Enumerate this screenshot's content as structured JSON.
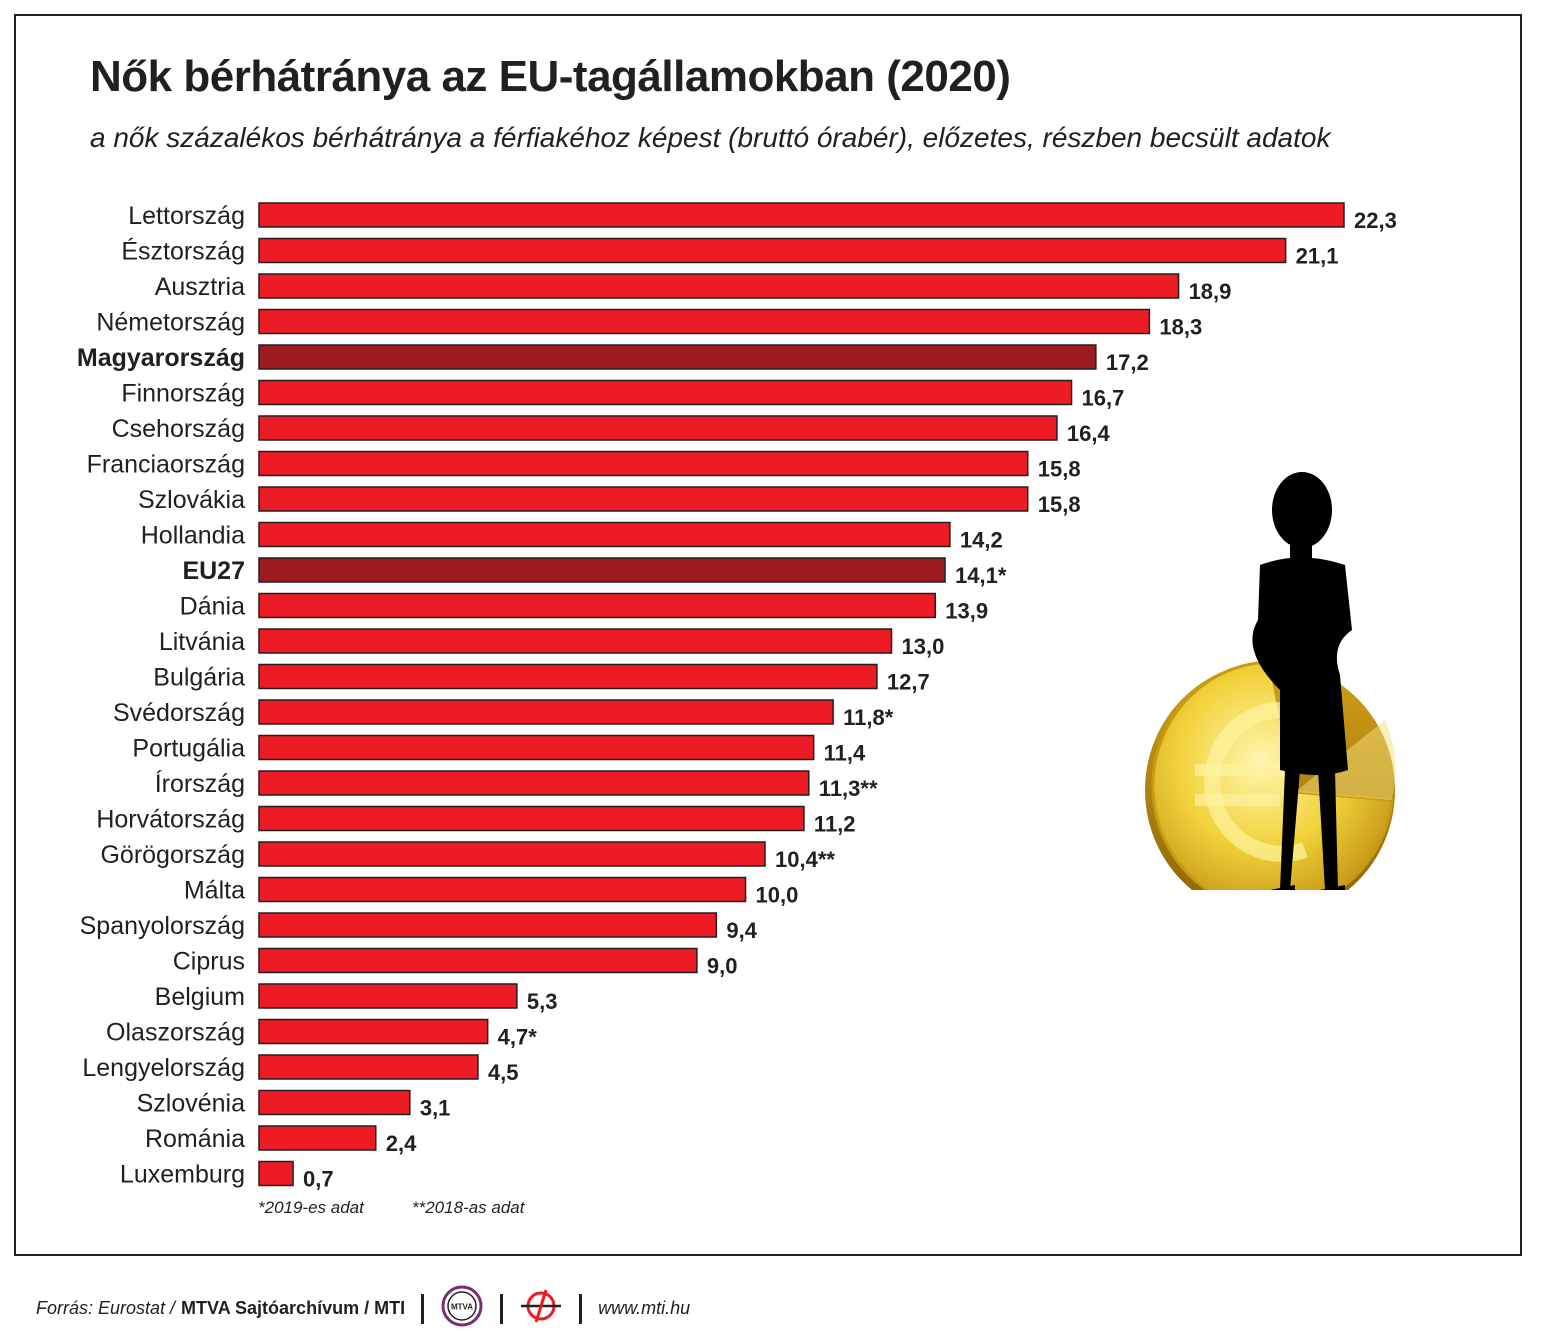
{
  "title": "Nők bérhátránya az EU-tagállamokban (2020)",
  "subtitle": "a nők százalékos bérhátránya a férfiakéhoz képest (bruttó órabér), előzetes, részben becsült adatok",
  "chart_data": {
    "type": "bar",
    "orientation": "horizontal",
    "categories": [
      "Lettország",
      "Észtország",
      "Ausztria",
      "Németország",
      "Magyarország",
      "Finnország",
      "Csehország",
      "Franciaország",
      "Szlovákia",
      "Hollandia",
      "EU27",
      "Dánia",
      "Litvánia",
      "Bulgária",
      "Svédország",
      "Portugália",
      "Írország",
      "Horvátország",
      "Görögország",
      "Málta",
      "Spanyolország",
      "Ciprus",
      "Belgium",
      "Olaszország",
      "Lengyelország",
      "Szlovénia",
      "Románia",
      "Luxemburg"
    ],
    "values": [
      22.3,
      21.1,
      18.9,
      18.3,
      17.2,
      16.7,
      16.4,
      15.8,
      15.8,
      14.2,
      14.1,
      13.9,
      13.0,
      12.7,
      11.8,
      11.4,
      11.3,
      11.2,
      10.4,
      10.0,
      9.4,
      9.0,
      5.3,
      4.7,
      4.5,
      3.1,
      2.4,
      0.7
    ],
    "value_labels": [
      "22,3",
      "21,1",
      "18,9",
      "18,3",
      "17,2",
      "16,7",
      "16,4",
      "15,8",
      "15,8",
      "14,2",
      "14,1*",
      "13,9",
      "13,0",
      "12,7",
      "11,8*",
      "11,4",
      "11,3**",
      "11,2",
      "10,4**",
      "10,0",
      "9,4",
      "9,0",
      "5,3",
      "4,7*",
      "4,5",
      "3,1",
      "2,4",
      "0,7"
    ],
    "highlighted": [
      "Magyarország",
      "EU27"
    ],
    "colors": {
      "bar": "#ed1c24",
      "highlight": "#9b1b1f",
      "outline": "#231f20"
    }
  },
  "notes": {
    "note1": "*2019-es adat",
    "note2": "**2018-as adat"
  },
  "footer": {
    "source_prefix": "Forrás: Eurostat / ",
    "source_bold": "MTVA Sajtóarchívum / MTI",
    "mtva_logo_text": "MTVA",
    "website": "www.mti.hu"
  },
  "icons": {
    "illustration": "woman-silhouette-on-euro-coin-icon",
    "mtva_logo": "mtva-logo-icon",
    "mti_logo": "mti-logo-icon"
  }
}
